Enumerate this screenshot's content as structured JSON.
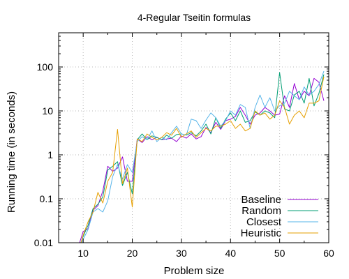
{
  "chart_data": {
    "type": "line",
    "title": "4-Regular Tseitin formulas",
    "xlabel": "Problem size",
    "ylabel": "Running time (in seconds)",
    "xlim": [
      5,
      60
    ],
    "ylim": [
      0.01,
      600
    ],
    "yscale": "log",
    "grid": true,
    "legend_position": "bottom-right",
    "x_ticks": [
      10,
      20,
      30,
      40,
      50,
      60
    ],
    "x_tick_labels": [
      "10",
      "20",
      "30",
      "40",
      "50",
      "60"
    ],
    "y_ticks": [
      0.01,
      0.1,
      1,
      10,
      100
    ],
    "y_tick_labels": [
      "0.01",
      "0.1",
      "1",
      "10",
      "100"
    ],
    "x": [
      9,
      10,
      11,
      12,
      13,
      14,
      15,
      16,
      17,
      18,
      19,
      20,
      21,
      22,
      23,
      24,
      25,
      26,
      27,
      28,
      29,
      30,
      31,
      32,
      33,
      34,
      35,
      36,
      37,
      38,
      39,
      40,
      41,
      42,
      43,
      44,
      45,
      46,
      47,
      48,
      49,
      50,
      51,
      52,
      53,
      54,
      55,
      56,
      57,
      58,
      59
    ],
    "series": [
      {
        "name": "Baseline",
        "color": "#9400d3",
        "values": [
          0.008,
          0.018,
          0.021,
          0.055,
          0.07,
          0.15,
          0.55,
          0.42,
          0.5,
          0.9,
          0.25,
          0.25,
          2.3,
          1.9,
          2.6,
          2.2,
          2.5,
          2.2,
          2.3,
          2.4,
          2.0,
          2.7,
          2.4,
          3.0,
          2.3,
          2.6,
          4.2,
          3.2,
          5.5,
          3.8,
          6.0,
          6.5,
          7.5,
          12.0,
          8.0,
          5.0,
          8.0,
          9.0,
          12.0,
          10.0,
          8.0,
          8.5,
          22.0,
          12.0,
          42.0,
          18.0,
          28.0,
          22.0,
          55.0,
          45.0,
          17.0
        ]
      },
      {
        "name": "Random",
        "color": "#009e73",
        "values": [
          0.007,
          0.014,
          0.025,
          0.06,
          0.075,
          0.11,
          0.45,
          0.55,
          0.7,
          0.2,
          0.4,
          0.13,
          2.2,
          3.0,
          2.2,
          2.7,
          2.5,
          2.2,
          2.8,
          2.4,
          2.9,
          3.0,
          2.8,
          3.2,
          2.7,
          3.5,
          5.0,
          3.0,
          7.0,
          4.0,
          6.5,
          9.0,
          6.0,
          10.0,
          5.5,
          6.0,
          9.5,
          8.0,
          10.0,
          9.0,
          7.0,
          75.0,
          11.0,
          10.0,
          23.0,
          28.0,
          15.0,
          55.0,
          13.0,
          25.0,
          68.0
        ]
      },
      {
        "name": "Closest",
        "color": "#56b4e9",
        "values": [
          0.006,
          0.012,
          0.02,
          0.05,
          0.06,
          0.05,
          0.09,
          0.32,
          0.6,
          0.28,
          0.6,
          0.4,
          2.0,
          2.6,
          2.2,
          3.5,
          2.0,
          2.5,
          2.2,
          3.2,
          4.5,
          3.0,
          2.8,
          6.5,
          6.0,
          4.0,
          6.2,
          9.0,
          7.0,
          4.5,
          6.0,
          10.0,
          8.0,
          14.0,
          12.0,
          4.0,
          12.0,
          23.0,
          12.0,
          20.0,
          10.0,
          13.0,
          15.0,
          28.0,
          22.0,
          18.0,
          35.0,
          23.0,
          28.0,
          40.0,
          80.0
        ]
      },
      {
        "name": "Heuristic",
        "color": "#e69f00",
        "values": [
          0.006,
          0.015,
          0.03,
          0.05,
          0.14,
          0.08,
          0.25,
          0.4,
          3.8,
          0.22,
          0.5,
          0.065,
          2.3,
          2.0,
          3.0,
          2.5,
          2.2,
          2.5,
          3.2,
          2.8,
          4.0,
          2.5,
          3.0,
          3.5,
          2.5,
          3.2,
          4.0,
          3.5,
          4.5,
          4.5,
          5.0,
          6.0,
          4.0,
          5.0,
          3.5,
          4.0,
          10.0,
          8.0,
          9.0,
          6.5,
          8.0,
          17.0,
          12.0,
          5.0,
          8.0,
          10.0,
          7.0,
          15.0,
          15.0,
          17.0,
          60.0
        ]
      }
    ]
  }
}
